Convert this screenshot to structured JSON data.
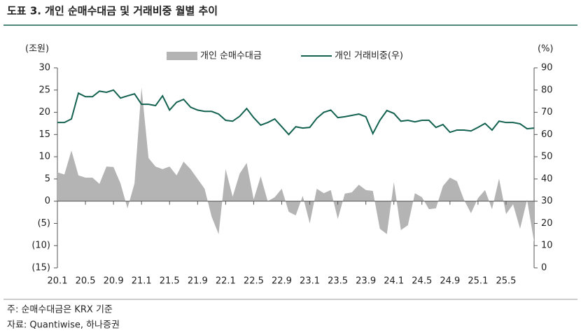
{
  "chart_data": {
    "type": "combo",
    "title": "도표 3. 개인 순매수대금 및 거래비중 월별 추이",
    "y_label": "(조원)",
    "y2_label": "(%)",
    "categories": [
      "20.1",
      null,
      null,
      null,
      "20.5",
      null,
      null,
      null,
      "20.9",
      null,
      null,
      null,
      "21.1",
      null,
      null,
      null,
      "21.5",
      null,
      null,
      null,
      "21.9",
      null,
      null,
      null,
      "22.1",
      null,
      null,
      null,
      "22.5",
      null,
      null,
      null,
      "22.9",
      null,
      null,
      null,
      "23.1",
      null,
      null,
      null,
      "23.5",
      null,
      null,
      null,
      "23.9",
      null,
      null,
      null,
      "24.1",
      null,
      null,
      null,
      "24.5",
      null,
      null,
      null,
      "24.9",
      null,
      null,
      null,
      "25.1",
      null,
      null,
      null,
      "25.5",
      null,
      null,
      null,
      null
    ],
    "series": [
      {
        "name": "개인 순매수대금",
        "type": "area",
        "color": "#b4b4b4",
        "axis": "y",
        "values": [
          6.5,
          6,
          11.4,
          5.8,
          5.3,
          5.3,
          3.9,
          7.8,
          7.7,
          4,
          -1.6,
          4,
          25.6,
          9.7,
          7.8,
          7.2,
          7.8,
          5.8,
          8.9,
          7.2,
          5,
          2.8,
          -3.5,
          -7.4,
          7.2,
          1,
          6.2,
          8.6,
          0.4,
          5.6,
          0,
          0.9,
          2.8,
          -2.4,
          -3.2,
          1.2,
          -5,
          2.8,
          1.8,
          2.5,
          -4,
          1.7,
          2,
          3.7,
          2.5,
          2.3,
          -6.2,
          -7.4,
          4.3,
          -6.5,
          -5.4,
          1.8,
          0.9,
          -1.8,
          -1.6,
          3.4,
          5.3,
          4.5,
          0.3,
          -2.7,
          0.7,
          2.5,
          -1.8,
          5.1,
          -2.9,
          -0.7,
          -6.2,
          0.3,
          -9.2
        ]
      },
      {
        "name": "개인 거래비중(우)",
        "type": "line",
        "color": "#13614f",
        "axis": "y2",
        "values": [
          65.4,
          65.4,
          67,
          78.6,
          77,
          77,
          79.5,
          79,
          80,
          76.4,
          77.4,
          78.3,
          73.6,
          73.6,
          73,
          77.4,
          71,
          74.5,
          75.8,
          72.3,
          71,
          70.4,
          70.4,
          69.2,
          66.4,
          66,
          68.2,
          71.7,
          67.6,
          64.2,
          65.4,
          67,
          63.5,
          60,
          63.5,
          62.9,
          63.2,
          67.3,
          70,
          71,
          67.6,
          68,
          68.6,
          69.2,
          68,
          60.4,
          66.4,
          70.8,
          69.5,
          66,
          66.4,
          65.7,
          66.4,
          66.4,
          63.2,
          64.5,
          61,
          62,
          62,
          61.6,
          63.2,
          65,
          62,
          66,
          65.4,
          65.4,
          64.8,
          62.6,
          62.9
        ]
      }
    ],
    "ylim": [
      -15,
      30
    ],
    "yticks": [
      {
        "value": -15,
        "label": "(15)"
      },
      {
        "value": -10,
        "label": "(10)"
      },
      {
        "value": -5,
        "label": "(5)"
      },
      0,
      5,
      10,
      15,
      20,
      25,
      30
    ],
    "y2lim": [
      0,
      90
    ],
    "y2ticks": [
      0,
      10,
      20,
      30,
      40,
      50,
      60,
      70,
      80,
      90
    ],
    "legend": "top"
  },
  "notes": [
    "주: 순매수대금은 KRX 기준",
    "자료: Quantiwise, 하나증권"
  ]
}
